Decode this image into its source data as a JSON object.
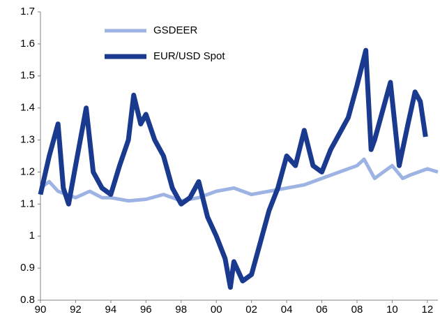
{
  "chart_data": {
    "type": "line",
    "xlim": [
      1990,
      2012.6
    ],
    "xticks": [
      {
        "value": 1990,
        "label": "90"
      },
      {
        "value": 1992,
        "label": "92"
      },
      {
        "value": 1994,
        "label": "94"
      },
      {
        "value": 1996,
        "label": "96"
      },
      {
        "value": 1998,
        "label": "98"
      },
      {
        "value": 2000,
        "label": "00"
      },
      {
        "value": 2002,
        "label": "02"
      },
      {
        "value": 2004,
        "label": "04"
      },
      {
        "value": 2006,
        "label": "06"
      },
      {
        "value": 2008,
        "label": "08"
      },
      {
        "value": 2010,
        "label": "10"
      },
      {
        "value": 2012,
        "label": "12"
      }
    ],
    "ylim": [
      0.8,
      1.7
    ],
    "yticks": [
      0.8,
      0.9,
      1,
      1.1,
      1.2,
      1.3,
      1.4,
      1.5,
      1.6,
      1.7
    ],
    "legend": "upper-left",
    "series": [
      {
        "name": "GSDEER",
        "color": "#9db3e3",
        "width": 5,
        "x": [
          1990,
          1990.5,
          1991,
          1992,
          1992.8,
          1993.5,
          1994,
          1995,
          1996,
          1997,
          1998,
          1999,
          2000,
          2001,
          2002,
          2003,
          2004,
          2005,
          2006,
          2007,
          2008,
          2008.4,
          2009,
          2009.5,
          2010,
          2010.6,
          2011,
          2012,
          2012.6
        ],
        "values": [
          1.15,
          1.17,
          1.14,
          1.12,
          1.14,
          1.12,
          1.12,
          1.11,
          1.115,
          1.13,
          1.11,
          1.12,
          1.14,
          1.15,
          1.13,
          1.14,
          1.15,
          1.16,
          1.18,
          1.2,
          1.22,
          1.24,
          1.18,
          1.2,
          1.22,
          1.18,
          1.19,
          1.21,
          1.2
        ]
      },
      {
        "name": "EUR/USD Spot",
        "color": "#1a3a8f",
        "width": 7,
        "x": [
          1990,
          1990.5,
          1991,
          1991.3,
          1991.6,
          1992,
          1992.6,
          1993,
          1993.5,
          1994,
          1994.5,
          1995,
          1995.3,
          1995.7,
          1996,
          1996.5,
          1997,
          1997.5,
          1998,
          1998.5,
          1999,
          1999.5,
          2000,
          2000.5,
          2000.8,
          2001,
          2001.5,
          2002,
          2002.5,
          2003,
          2003.5,
          2004,
          2004.5,
          2005,
          2005.5,
          2006,
          2006.5,
          2007,
          2007.5,
          2008,
          2008.5,
          2008.8,
          2009,
          2009.5,
          2009.9,
          2010.4,
          2010.9,
          2011.3,
          2011.6,
          2011.9
        ],
        "values": [
          1.13,
          1.25,
          1.35,
          1.15,
          1.1,
          1.22,
          1.4,
          1.2,
          1.15,
          1.13,
          1.22,
          1.3,
          1.44,
          1.35,
          1.38,
          1.3,
          1.25,
          1.15,
          1.1,
          1.12,
          1.17,
          1.06,
          1.0,
          0.93,
          0.84,
          0.92,
          0.86,
          0.88,
          0.98,
          1.08,
          1.15,
          1.25,
          1.22,
          1.33,
          1.22,
          1.2,
          1.27,
          1.32,
          1.37,
          1.47,
          1.58,
          1.27,
          1.3,
          1.4,
          1.48,
          1.22,
          1.35,
          1.45,
          1.42,
          1.31
        ]
      }
    ]
  }
}
